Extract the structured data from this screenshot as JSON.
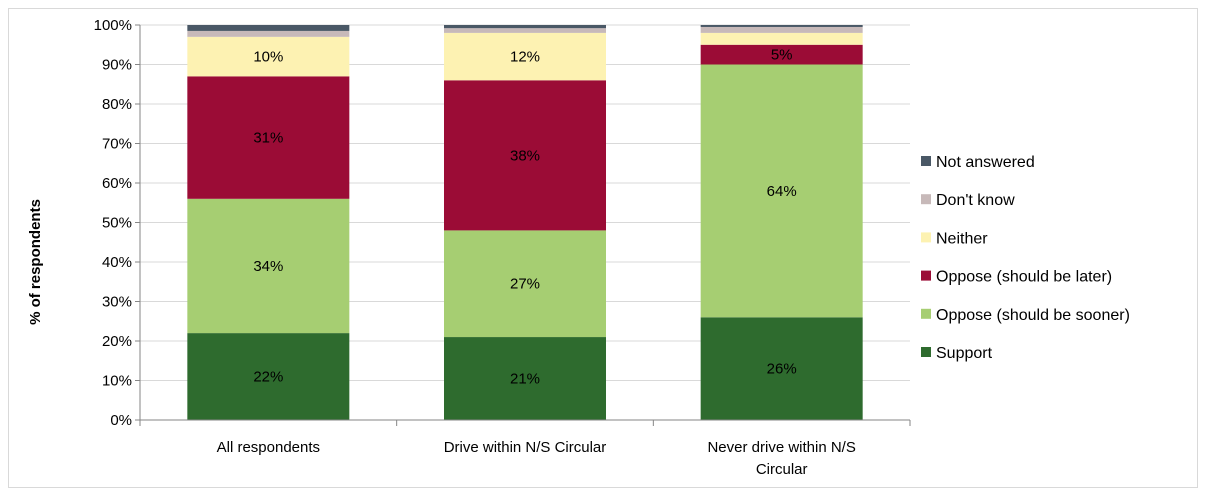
{
  "chart_data": {
    "type": "bar",
    "stacked": true,
    "percent": true,
    "title": "",
    "xlabel": "",
    "ylabel": "% of respondents",
    "ylim": [
      0,
      100
    ],
    "yticks": [
      "0%",
      "10%",
      "20%",
      "30%",
      "40%",
      "50%",
      "60%",
      "70%",
      "80%",
      "90%",
      "100%"
    ],
    "grid": true,
    "legend_position": "right",
    "categories": [
      [
        "All respondents"
      ],
      [
        "Drive within N/S Circular"
      ],
      [
        "Never drive within N/S",
        "Circular"
      ]
    ],
    "series": [
      {
        "name": "Support",
        "color": "#2e6b2e",
        "values": [
          22,
          21,
          26
        ],
        "labels": [
          "22%",
          "21%",
          "26%"
        ]
      },
      {
        "name": "Oppose (should be sooner)",
        "color": "#a6ce72",
        "values": [
          34,
          27,
          64
        ],
        "labels": [
          "34%",
          "27%",
          "64%"
        ]
      },
      {
        "name": "Oppose (should be later)",
        "color": "#9b0c36",
        "values": [
          31,
          38,
          5
        ],
        "labels": [
          "31%",
          "38%",
          "5%"
        ]
      },
      {
        "name": "Neither",
        "color": "#fdf2b2",
        "values": [
          10,
          12,
          3
        ],
        "labels": [
          "10%",
          "12%",
          ""
        ]
      },
      {
        "name": "Don't know",
        "color": "#c7b9b9",
        "values": [
          1.5,
          1.2,
          1.5
        ],
        "labels": [
          "",
          "",
          ""
        ]
      },
      {
        "name": "Not answered",
        "color": "#4a5866",
        "values": [
          1.5,
          0.8,
          0.5
        ],
        "labels": [
          "",
          "",
          ""
        ]
      }
    ]
  }
}
